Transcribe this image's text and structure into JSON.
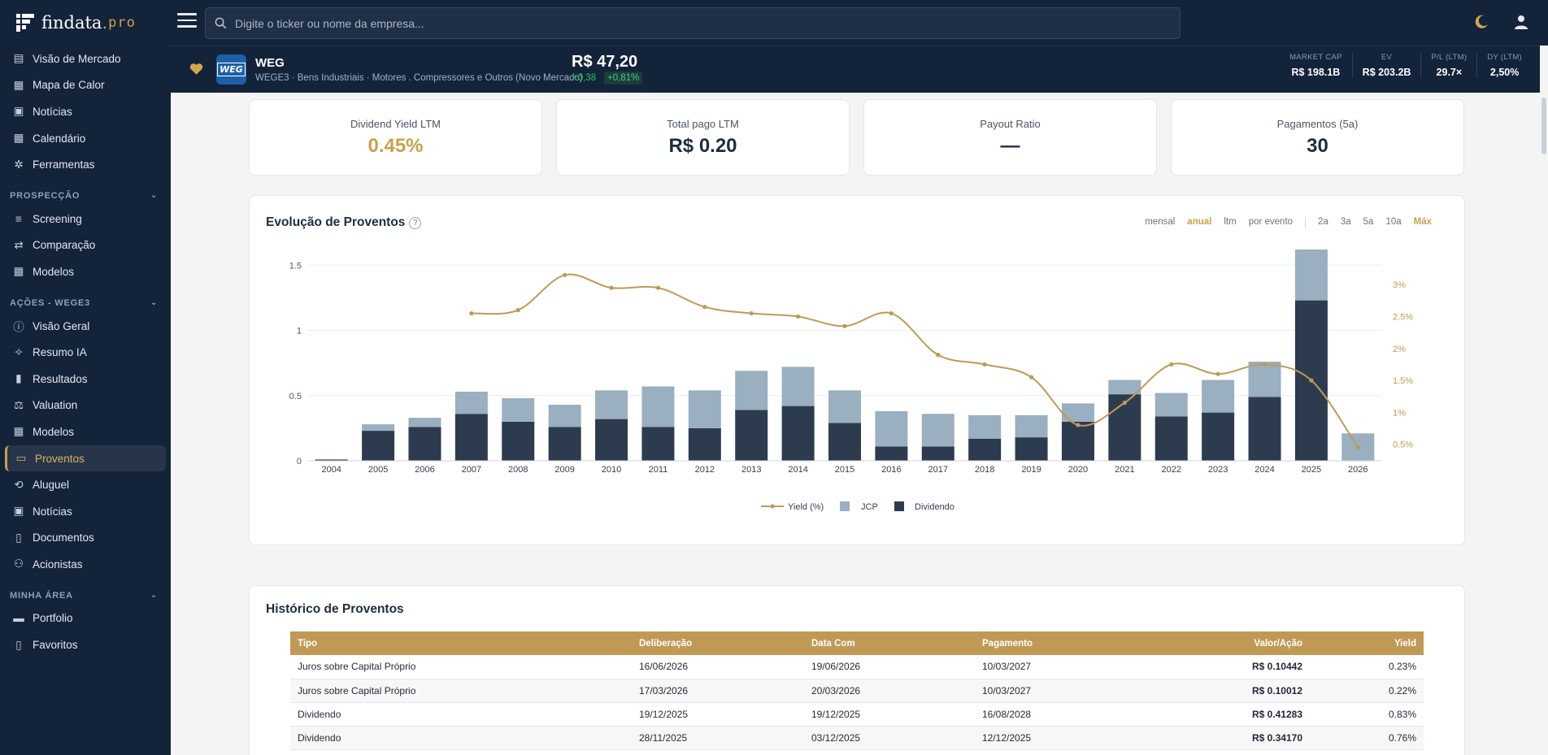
{
  "app": {
    "logo_main": "findata",
    "logo_dot": ".",
    "logo_pro": "pro"
  },
  "search": {
    "placeholder": "Digite o ticker ou nome da empresa..."
  },
  "sidebar": {
    "top_items": [
      {
        "label": "Visão de Mercado",
        "icon": "list-icon"
      },
      {
        "label": "Mapa de Calor",
        "icon": "grid-icon"
      },
      {
        "label": "Notícias",
        "icon": "newspaper-icon"
      },
      {
        "label": "Calendário",
        "icon": "calendar-icon"
      },
      {
        "label": "Ferramentas",
        "icon": "tools-icon"
      }
    ],
    "sections": [
      {
        "title": "PROSPECÇÃO",
        "items": [
          {
            "label": "Screening",
            "icon": "filter-icon"
          },
          {
            "label": "Comparação",
            "icon": "compare-icon"
          },
          {
            "label": "Modelos",
            "icon": "table-icon"
          }
        ]
      },
      {
        "title": "AÇÕES - WEGE3",
        "items": [
          {
            "label": "Visão Geral",
            "icon": "info-icon"
          },
          {
            "label": "Resumo IA",
            "icon": "sparkle-icon"
          },
          {
            "label": "Resultados",
            "icon": "bar-chart-icon"
          },
          {
            "label": "Valuation",
            "icon": "scale-icon"
          },
          {
            "label": "Modelos",
            "icon": "table-icon"
          },
          {
            "label": "Proventos",
            "icon": "cash-icon",
            "active": true
          },
          {
            "label": "Aluguel",
            "icon": "swap-icon"
          },
          {
            "label": "Notícias",
            "icon": "newspaper-icon"
          },
          {
            "label": "Documentos",
            "icon": "document-icon"
          },
          {
            "label": "Acionistas",
            "icon": "users-icon"
          }
        ]
      },
      {
        "title": "MINHA ÁREA",
        "items": [
          {
            "label": "Portfolio",
            "icon": "wallet-icon"
          },
          {
            "label": "Favoritos",
            "icon": "bookmark-icon"
          }
        ]
      }
    ]
  },
  "ticker": {
    "logo_text": "WEG",
    "name": "WEG",
    "description": "WEGE3 · Bens Industriais · Motores . Compressores e Outros (Novo Mercado)",
    "price": "R$ 47,20",
    "change": "+0,38",
    "change_pct": "+0,81%",
    "metrics": [
      {
        "label": "MARKET CAP",
        "value": "R$ 198.1B"
      },
      {
        "label": "EV",
        "value": "R$ 203.2B"
      },
      {
        "label": "P/L (LTM)",
        "value": "29.7×"
      },
      {
        "label": "DY (LTM)",
        "value": "2,50%"
      }
    ]
  },
  "stats": [
    {
      "label": "Dividend Yield LTM",
      "value": "0.45%",
      "accent": "#c9a14a"
    },
    {
      "label": "Total pago LTM",
      "value": "R$ 0.20"
    },
    {
      "label": "Payout Ratio",
      "value": "—"
    },
    {
      "label": "Pagamentos (5a)",
      "value": "30"
    }
  ],
  "chart_section": {
    "title": "Evolução de Proventos",
    "help": "?",
    "controls": [
      "mensal",
      "anual",
      "ltm",
      "por evento",
      "2a",
      "3a",
      "5a",
      "10a",
      "Máx"
    ],
    "active_controls": [
      "anual",
      "Máx"
    ]
  },
  "chart_data": {
    "type": "bar",
    "stacked": true,
    "categories": [
      "2004",
      "2005",
      "2006",
      "2007",
      "2008",
      "2009",
      "2010",
      "2011",
      "2012",
      "2013",
      "2014",
      "2015",
      "2016",
      "2017",
      "2018",
      "2019",
      "2020",
      "2021",
      "2022",
      "2023",
      "2024",
      "2025",
      "2026"
    ],
    "series": [
      {
        "name": "Dividendo",
        "type": "bar",
        "color": "#2d3b4f",
        "axis": "left",
        "values": [
          0.01,
          0.23,
          0.26,
          0.36,
          0.3,
          0.26,
          0.32,
          0.26,
          0.25,
          0.39,
          0.42,
          0.29,
          0.11,
          0.11,
          0.17,
          0.18,
          0.3,
          0.51,
          0.34,
          0.37,
          0.49,
          1.23,
          0
        ]
      },
      {
        "name": "JCP",
        "type": "bar",
        "color": "#9aafbf",
        "axis": "left",
        "values": [
          0,
          0.05,
          0.07,
          0.17,
          0.18,
          0.17,
          0.22,
          0.31,
          0.29,
          0.3,
          0.3,
          0.25,
          0.27,
          0.25,
          0.18,
          0.17,
          0.14,
          0.11,
          0.18,
          0.25,
          0.27,
          0.39,
          0.21
        ]
      },
      {
        "name": "Yield (%)",
        "type": "line",
        "color": "#c09a55",
        "axis": "right",
        "x": [
          "2007",
          "2008",
          "2009",
          "2010",
          "2011",
          "2012",
          "2013",
          "2014",
          "2015",
          "2016",
          "2017",
          "2018",
          "2019",
          "2020",
          "2021",
          "2022",
          "2023",
          "2024",
          "2025",
          "2026"
        ],
        "values": [
          2.55,
          2.6,
          3.15,
          2.95,
          2.95,
          2.65,
          2.55,
          2.5,
          2.35,
          2.55,
          1.9,
          1.75,
          1.55,
          0.8,
          1.15,
          1.75,
          1.6,
          1.75,
          1.5,
          0.45
        ]
      }
    ],
    "ylim": [
      0,
      1.62
    ],
    "y_ticks": [
      0,
      0.5,
      1,
      1.5
    ],
    "y_tick_labels": [
      "0",
      "0.5",
      "1",
      "1.5"
    ],
    "y2lim": [
      0.24,
      3.55
    ],
    "y2_ticks": [
      0.5,
      1,
      1.5,
      2,
      2.5,
      3
    ],
    "y2_tick_labels": [
      "0.5%",
      "1%",
      "1.5%",
      "2%",
      "2.5%",
      "3%"
    ],
    "legend": [
      "Yield (%)",
      "JCP",
      "Dividendo"
    ],
    "legend_position": "bottom",
    "grid": true
  },
  "history": {
    "title": "Histórico de Proventos",
    "columns": [
      "Tipo",
      "Deliberação",
      "Data Com",
      "Pagamento",
      "Valor/Ação",
      "Yield"
    ],
    "rows": [
      [
        "Juros sobre Capital Próprio",
        "16/06/2026",
        "19/06/2026",
        "10/03/2027",
        "R$ 0.10442",
        "0.23%"
      ],
      [
        "Juros sobre Capital Próprio",
        "17/03/2026",
        "20/03/2026",
        "10/03/2027",
        "R$ 0.10012",
        "0.22%"
      ],
      [
        "Dividendo",
        "19/12/2025",
        "19/12/2025",
        "16/08/2028",
        "R$ 0.41283",
        "0.83%"
      ],
      [
        "Dividendo",
        "28/11/2025",
        "03/12/2025",
        "12/12/2025",
        "R$ 0.34170",
        "0.76%"
      ]
    ]
  }
}
